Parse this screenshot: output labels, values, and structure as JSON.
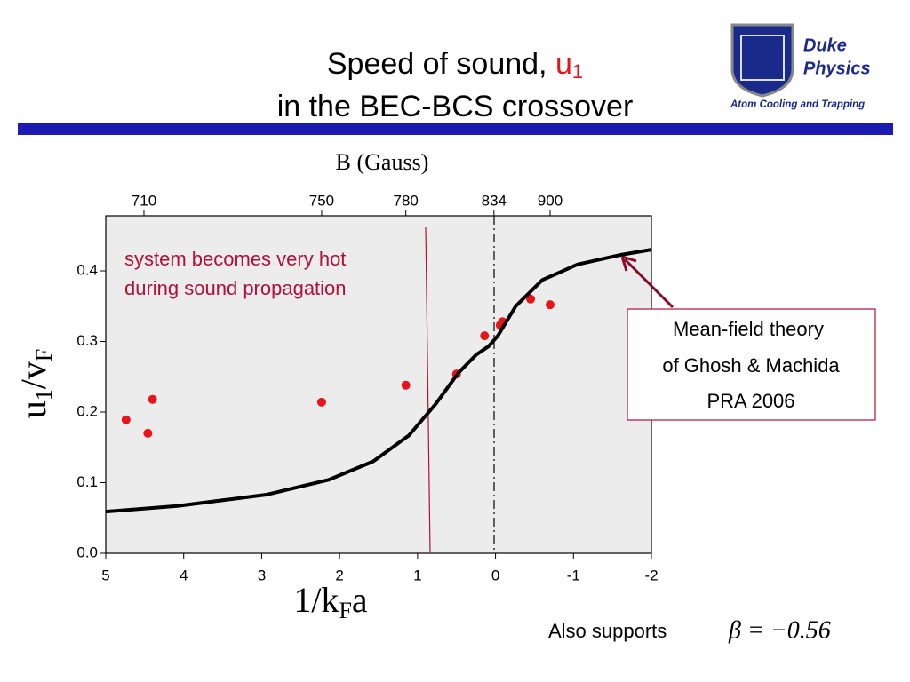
{
  "header": {
    "title_line1": "Speed of sound,",
    "title_symbol": "u",
    "title_subscript": "1",
    "title_line2": "in the BEC-BCS crossover"
  },
  "logo": {
    "line1": "Duke",
    "line2": "Physics",
    "tagline": "Atom Cooling and Trapping"
  },
  "chart_data": {
    "type": "scatter",
    "top_axis_title": "B (Gauss)",
    "y_label": {
      "base": "u",
      "sub1": "1",
      "mid": "/v",
      "sub2": "F"
    },
    "x_label": {
      "base": "1/k",
      "sub": "F",
      "end": "a"
    },
    "xlim": [
      5,
      -2
    ],
    "ylim": [
      0,
      0.478
    ],
    "xticks": [
      5,
      4,
      3,
      2,
      1,
      0,
      -1,
      -2
    ],
    "yticks": [
      {
        "value": 0,
        "label": "0.0"
      },
      0.1,
      0.2,
      0.3,
      0.4
    ],
    "top_ticks": [
      {
        "value": 4.51,
        "label": "710"
      },
      {
        "value": 2.23,
        "label": "750"
      },
      {
        "value": 1.15,
        "label": "780"
      },
      {
        "value": 0.02,
        "label": "834"
      },
      {
        "value": -0.7,
        "label": "900"
      }
    ],
    "series": [
      {
        "type": "scatter",
        "color": "#e8141c",
        "x": [
          4.74,
          4.46,
          4.4,
          2.23,
          1.15,
          0.5,
          0.14,
          -0.06,
          -0.09,
          -0.45,
          -0.7
        ],
        "values": [
          0.189,
          0.17,
          0.218,
          0.214,
          0.238,
          0.254,
          0.308,
          0.323,
          0.328,
          0.36,
          0.352
        ]
      },
      {
        "type": "line",
        "color": "#000000",
        "x": [
          5,
          4.08,
          2.94,
          2.14,
          1.57,
          1.11,
          0.77,
          0.48,
          0.25,
          0.09,
          -0.03,
          -0.26,
          -0.6,
          -1.05,
          -1.62,
          -2
        ],
        "values": [
          0.059,
          0.067,
          0.083,
          0.104,
          0.13,
          0.167,
          0.211,
          0.255,
          0.281,
          0.293,
          0.308,
          0.35,
          0.387,
          0.409,
          0.423,
          0.43
        ]
      }
    ],
    "annotations": {
      "hot_line1": "system becomes very hot",
      "hot_line2": "during sound propagation",
      "theory_line1": "Mean-field theory",
      "theory_line2": "of Ghosh & Machida",
      "theory_line3": "PRA 2006"
    }
  },
  "footer": {
    "text": "Also supports",
    "formula": "β = −0.56"
  }
}
